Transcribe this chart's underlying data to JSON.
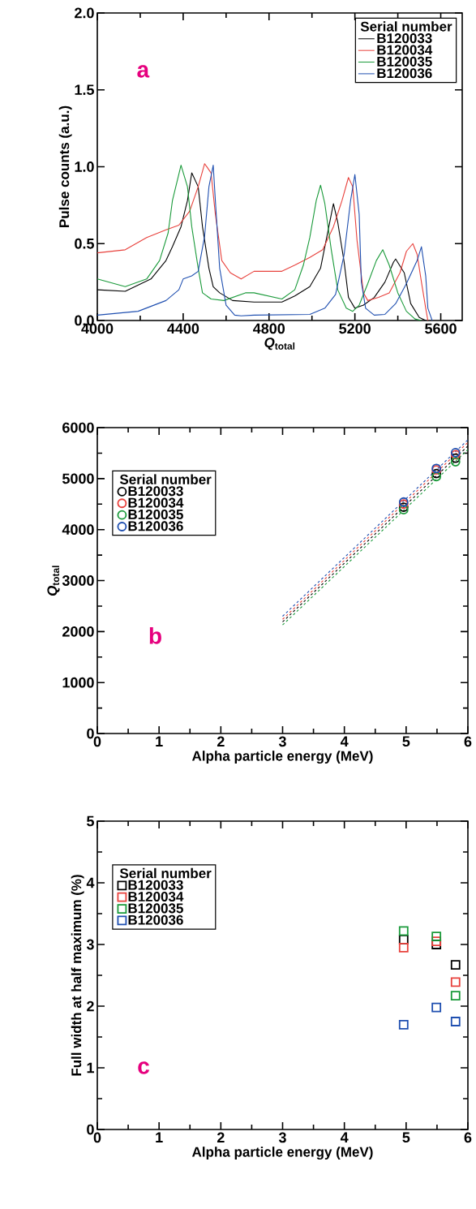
{
  "chart_data": [
    {
      "type": "line",
      "xlabel": "*Q*$_{total}$",
      "ylabel": "Pulse counts (a.u.)",
      "legend": "top right",
      "legend_title": "Serial number",
      "marker": "none",
      "line_style": "solid",
      "annotations": [
        "a"
      ],
      "xlim": [
        4000,
        5700
      ],
      "ylim": [
        0,
        2.0
      ],
      "xticks": [
        4000,
        {
          "value": 4200,
          "label": null
        },
        4400,
        {
          "value": 4600,
          "label": null
        },
        4800,
        {
          "value": 5000,
          "label": null
        },
        5200,
        {
          "value": 5400,
          "label": null
        },
        5600
      ],
      "yticks": [
        {
          "value": 0,
          "label": "0.0"
        },
        0.5,
        {
          "value": 1,
          "label": "1.0"
        },
        1.5,
        {
          "value": 2,
          "label": "2.0"
        }
      ],
      "series": [
        {
          "name": "B120033",
          "color": "#000000",
          "x": [
            4000,
            4130,
            4250,
            4320,
            4350,
            4390,
            4420,
            4440,
            4470,
            4490,
            4520,
            4540,
            4570,
            4630,
            4730,
            4860,
            4920,
            4990,
            5040,
            5070,
            5100,
            5120,
            5150,
            5170,
            5200,
            5240,
            5290,
            5340,
            5380,
            5390,
            5430,
            5460,
            5500,
            5530
          ],
          "values": [
            0.2,
            0.19,
            0.27,
            0.39,
            0.48,
            0.61,
            0.78,
            0.96,
            0.87,
            0.61,
            0.34,
            0.22,
            0.18,
            0.13,
            0.12,
            0.12,
            0.16,
            0.22,
            0.34,
            0.55,
            0.76,
            0.64,
            0.38,
            0.15,
            0.08,
            0.1,
            0.15,
            0.25,
            0.38,
            0.4,
            0.31,
            0.11,
            0.02,
            0
          ]
        },
        {
          "name": "B120034",
          "color": "#e8413c",
          "x": [
            4000,
            4130,
            4230,
            4320,
            4380,
            4430,
            4470,
            4500,
            4530,
            4550,
            4580,
            4620,
            4670,
            4730,
            4860,
            4920,
            4990,
            5050,
            5100,
            5140,
            5170,
            5190,
            5210,
            5240,
            5260,
            5310,
            5360,
            5410,
            5440,
            5470,
            5490,
            5510,
            5530,
            5540
          ],
          "values": [
            0.44,
            0.46,
            0.54,
            0.59,
            0.62,
            0.71,
            0.87,
            1.02,
            0.96,
            0.69,
            0.39,
            0.31,
            0.27,
            0.32,
            0.32,
            0.36,
            0.41,
            0.46,
            0.61,
            0.78,
            0.93,
            0.87,
            0.52,
            0.18,
            0.13,
            0.15,
            0.18,
            0.31,
            0.45,
            0.5,
            0.43,
            0.25,
            0.08,
            0
          ]
        },
        {
          "name": "B120035",
          "color": "#1a9a3a",
          "x": [
            4000,
            4130,
            4230,
            4290,
            4330,
            4350,
            4390,
            4420,
            4440,
            4470,
            4490,
            4530,
            4590,
            4690,
            4730,
            4860,
            4920,
            4960,
            4990,
            5020,
            5040,
            5060,
            5090,
            5120,
            5160,
            5190,
            5220,
            5260,
            5300,
            5330,
            5360,
            5400,
            5440,
            5480,
            5510
          ],
          "values": [
            0.27,
            0.22,
            0.27,
            0.39,
            0.57,
            0.78,
            1.01,
            0.87,
            0.61,
            0.34,
            0.18,
            0.14,
            0.13,
            0.18,
            0.18,
            0.14,
            0.2,
            0.36,
            0.54,
            0.78,
            0.88,
            0.76,
            0.46,
            0.2,
            0.08,
            0.06,
            0.1,
            0.24,
            0.39,
            0.46,
            0.36,
            0.18,
            0.06,
            0.01,
            0
          ]
        },
        {
          "name": "B120036",
          "color": "#1f4fb0",
          "x": [
            4000,
            4190,
            4320,
            4380,
            4400,
            4440,
            4470,
            4500,
            4520,
            4540,
            4550,
            4570,
            4600,
            4640,
            4670,
            4730,
            4990,
            5060,
            5110,
            5150,
            5180,
            5200,
            5220,
            5230,
            5250,
            5290,
            5340,
            5390,
            5440,
            5490,
            5510,
            5530,
            5540,
            5560
          ],
          "values": [
            0.035,
            0.06,
            0.13,
            0.2,
            0.27,
            0.29,
            0.32,
            0.55,
            0.87,
            1.01,
            0.78,
            0.34,
            0.1,
            0.035,
            0.03,
            0.035,
            0.04,
            0.08,
            0.17,
            0.43,
            0.78,
            0.95,
            0.69,
            0.25,
            0.08,
            0.035,
            0.04,
            0.11,
            0.24,
            0.39,
            0.48,
            0.29,
            0.08,
            0
          ]
        }
      ]
    },
    {
      "type": "scatter",
      "xlabel": "Alpha particle energy (MeV)",
      "ylabel": "*Q*$_{total}$",
      "legend": "top left",
      "legend_title": "Serial number",
      "marker": "circle",
      "annotations": [
        "b"
      ],
      "xlim": [
        0,
        6
      ],
      "ylim": [
        0,
        6000
      ],
      "xticks": [
        0,
        {
          "value": 0.5,
          "label": null
        },
        1,
        {
          "value": 1.5,
          "label": null
        },
        2,
        {
          "value": 2.5,
          "label": null
        },
        3,
        {
          "value": 3.5,
          "label": null
        },
        4,
        {
          "value": 4.5,
          "label": null
        },
        5,
        {
          "value": 5.5,
          "label": null
        },
        6
      ],
      "yticks": [
        0,
        {
          "value": 500,
          "label": null
        },
        1000,
        {
          "value": 1500,
          "label": null
        },
        2000,
        {
          "value": 2500,
          "label": null
        },
        3000,
        {
          "value": 3500,
          "label": null
        },
        4000,
        {
          "value": 4500,
          "label": null
        },
        5000,
        {
          "value": 5500,
          "label": null
        },
        6000
      ],
      "series": [
        {
          "name": "B120033",
          "color": "#000000",
          "x": [
            4.96,
            5.49,
            5.8
          ],
          "values": [
            4440,
            5100,
            5400
          ]
        },
        {
          "name": "B120034",
          "color": "#e8413c",
          "x": [
            4.96,
            5.49,
            5.8
          ],
          "values": [
            4500,
            5170,
            5470
          ]
        },
        {
          "name": "B120035",
          "color": "#1a9a3a",
          "x": [
            4.96,
            5.49,
            5.8
          ],
          "values": [
            4390,
            5040,
            5330
          ]
        },
        {
          "name": "B120036",
          "color": "#1f4fb0",
          "x": [
            4.96,
            5.49,
            5.8
          ],
          "values": [
            4540,
            5200,
            5510
          ]
        },
        {
          "type": "line",
          "marker": "none",
          "line_style": "dashed",
          "color": "#000000",
          "x": [
            3,
            6
          ],
          "values": [
            2190,
            5640
          ]
        },
        {
          "type": "line",
          "marker": "none",
          "line_style": "dashed",
          "color": "#e8413c",
          "x": [
            3,
            6
          ],
          "values": [
            2240,
            5710
          ]
        },
        {
          "type": "line",
          "marker": "none",
          "line_style": "dashed",
          "color": "#1a9a3a",
          "x": [
            3,
            6
          ],
          "values": [
            2130,
            5570
          ]
        },
        {
          "type": "line",
          "marker": "none",
          "line_style": "dashed",
          "color": "#1f4fb0",
          "x": [
            3,
            6
          ],
          "values": [
            2300,
            5760
          ]
        }
      ]
    },
    {
      "type": "scatter",
      "xlabel": "Alpha particle energy (MeV)",
      "ylabel": "Full width at half maximum (%)",
      "legend": "top left",
      "legend_title": "Serial number",
      "marker": "square",
      "annotations": [
        "c"
      ],
      "xlim": [
        0,
        6
      ],
      "ylim": [
        0,
        5
      ],
      "xticks": [
        0,
        {
          "value": 0.5,
          "label": null
        },
        1,
        {
          "value": 1.5,
          "label": null
        },
        2,
        {
          "value": 2.5,
          "label": null
        },
        3,
        {
          "value": 3.5,
          "label": null
        },
        4,
        {
          "value": 4.5,
          "label": null
        },
        5,
        {
          "value": 5.5,
          "label": null
        },
        6
      ],
      "yticks": [
        0,
        {
          "value": 0.5,
          "label": null
        },
        1,
        {
          "value": 1.5,
          "label": null
        },
        2,
        {
          "value": 2.5,
          "label": null
        },
        3,
        {
          "value": 3.5,
          "label": null
        },
        4,
        {
          "value": 4.5,
          "label": null
        },
        5
      ],
      "series": [
        {
          "name": "B120033",
          "color": "#000000",
          "x": [
            4.96,
            5.49,
            5.8
          ],
          "values": [
            3.08,
            3.0,
            2.67
          ]
        },
        {
          "name": "B120034",
          "color": "#e8413c",
          "x": [
            4.96,
            5.49,
            5.8
          ],
          "values": [
            2.95,
            3.05,
            2.39
          ]
        },
        {
          "name": "B120035",
          "color": "#1a9a3a",
          "x": [
            4.96,
            5.49,
            5.8
          ],
          "values": [
            3.22,
            3.13,
            2.17
          ]
        },
        {
          "name": "B120036",
          "color": "#1f4fb0",
          "x": [
            4.96,
            5.49,
            5.8
          ],
          "values": [
            1.7,
            1.98,
            1.75
          ]
        }
      ]
    }
  ]
}
